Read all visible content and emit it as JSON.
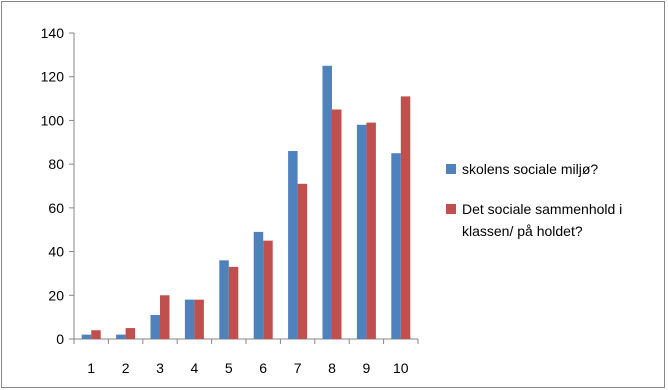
{
  "chart_data": {
    "type": "bar",
    "categories": [
      "1",
      "2",
      "3",
      "4",
      "5",
      "6",
      "7",
      "8",
      "9",
      "10"
    ],
    "series": [
      {
        "name": "skolens sociale miljø?",
        "color": "#4F81BD",
        "values": [
          2,
          2,
          11,
          18,
          36,
          49,
          86,
          125,
          98,
          85
        ]
      },
      {
        "name": "Det sociale sammenhold i klassen/ på holdet?",
        "color": "#C0504D",
        "values": [
          4,
          5,
          20,
          18,
          33,
          45,
          71,
          105,
          99,
          111
        ]
      }
    ],
    "ylim": [
      0,
      140
    ],
    "yticks": [
      0,
      20,
      40,
      60,
      80,
      100,
      120,
      140
    ],
    "grid": false,
    "legend_position": "right"
  }
}
